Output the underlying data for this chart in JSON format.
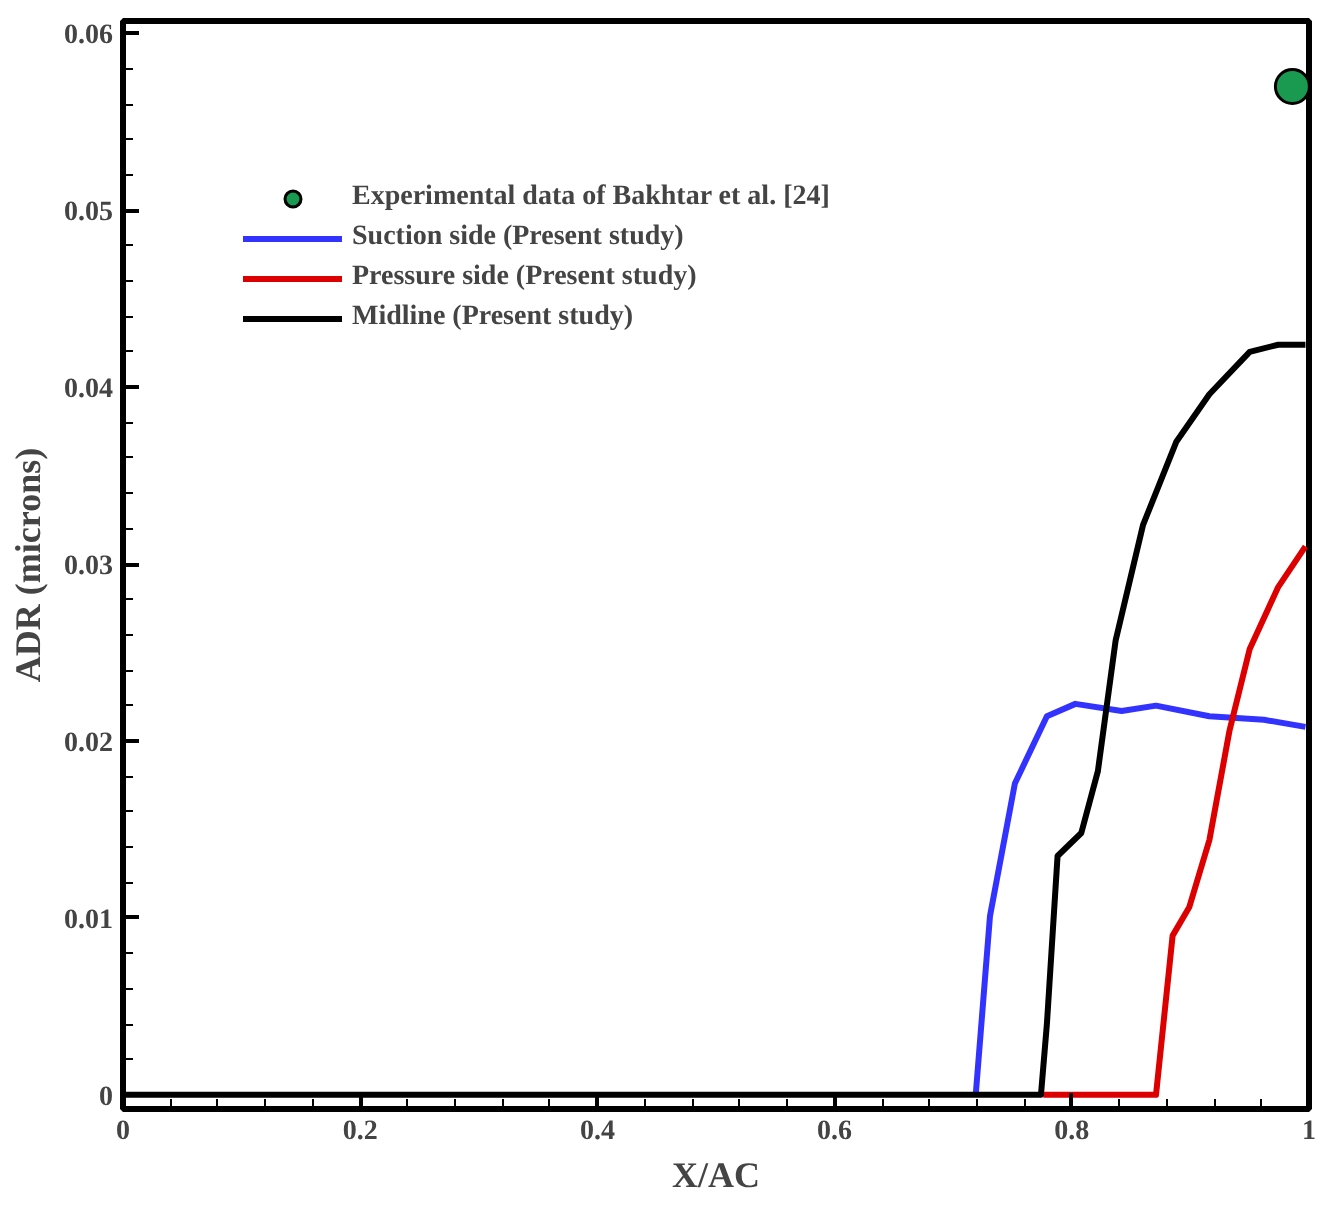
{
  "chart_data": {
    "type": "line",
    "xlabel": "X/AC",
    "ylabel": "ADR (microns)",
    "xlim": [
      0,
      1
    ],
    "ylim": [
      -0.0008,
      0.0607
    ],
    "xticks": [
      0,
      0.2,
      0.4,
      0.6,
      0.8,
      1
    ],
    "yticks": [
      0,
      0.01,
      0.02,
      0.03,
      0.04,
      0.05,
      0.06
    ],
    "grid": false,
    "legend": "top left",
    "series": [
      {
        "name": "Experimental data of Bakhtar et al. [24]",
        "type": "scatter",
        "marker": "circle",
        "color": "#1a9a50",
        "x": [
          0.986
        ],
        "values": [
          0.057
        ]
      },
      {
        "name": "Suction side (Present study)",
        "color": "#3333ff",
        "x": [
          0.719,
          0.731,
          0.752,
          0.779,
          0.803,
          0.842,
          0.871,
          0.916,
          0.962,
          0.997
        ],
        "values": [
          0,
          0.0101,
          0.0176,
          0.0214,
          0.0221,
          0.0217,
          0.022,
          0.0214,
          0.0212,
          0.0208
        ]
      },
      {
        "name": "Pressure side (Present study)",
        "color": "#dd0000",
        "x": [
          0.776,
          0.871,
          0.885,
          0.899,
          0.916,
          0.933,
          0.95,
          0.974,
          0.997
        ],
        "values": [
          0,
          0,
          0.009,
          0.0106,
          0.0144,
          0.0206,
          0.0252,
          0.0287,
          0.031
        ]
      },
      {
        "name": "Midline (Present study)",
        "color": "#000000",
        "x": [
          0,
          0.774,
          0.779,
          0.788,
          0.808,
          0.822,
          0.837,
          0.86,
          0.888,
          0.916,
          0.95,
          0.974,
          0.997
        ],
        "values": [
          0,
          0,
          0.004,
          0.0135,
          0.0148,
          0.0183,
          0.0257,
          0.0322,
          0.0369,
          0.0396,
          0.042,
          0.0424,
          0.0424
        ]
      }
    ]
  }
}
